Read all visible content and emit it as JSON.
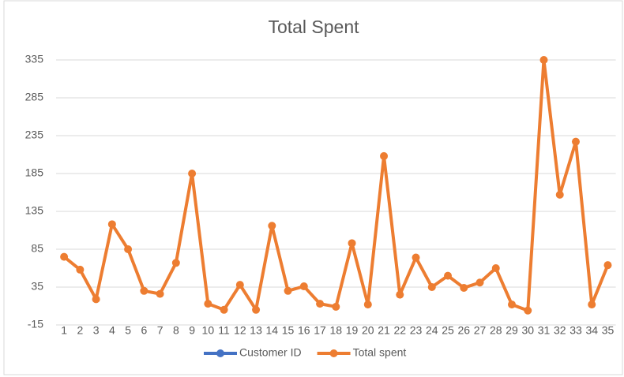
{
  "chart_data": {
    "type": "line",
    "title": "Total Spent",
    "categories": [
      "1",
      "2",
      "3",
      "4",
      "5",
      "6",
      "7",
      "8",
      "9",
      "10",
      "11",
      "12",
      "13",
      "14",
      "15",
      "16",
      "17",
      "18",
      "19",
      "20",
      "21",
      "22",
      "23",
      "24",
      "25",
      "26",
      "27",
      "28",
      "29",
      "30",
      "31",
      "32",
      "33",
      "34",
      "35"
    ],
    "series": [
      {
        "name": "Customer ID",
        "color": "#4472c4",
        "values": [
          null,
          null,
          null,
          null,
          null,
          null,
          null,
          null,
          null,
          null,
          null,
          null,
          null,
          null,
          null,
          null,
          null,
          null,
          null,
          null,
          null,
          null,
          null,
          null,
          null,
          null,
          null,
          null,
          null,
          null,
          null,
          null,
          null,
          null,
          null
        ]
      },
      {
        "name": "Total spent",
        "color": "#ed7d31",
        "values": [
          75,
          58,
          19,
          118,
          85,
          30,
          26,
          67,
          185,
          13,
          5,
          38,
          5,
          116,
          30,
          36,
          13,
          9,
          93,
          12,
          208,
          25,
          74,
          35,
          50,
          34,
          41,
          60,
          12,
          4,
          335,
          157,
          227,
          12,
          64
        ]
      }
    ],
    "ylim": [
      -15,
      335
    ],
    "yticks": [
      -15,
      35,
      85,
      135,
      185,
      235,
      285,
      335
    ],
    "grid": true,
    "legend": "bottom"
  }
}
